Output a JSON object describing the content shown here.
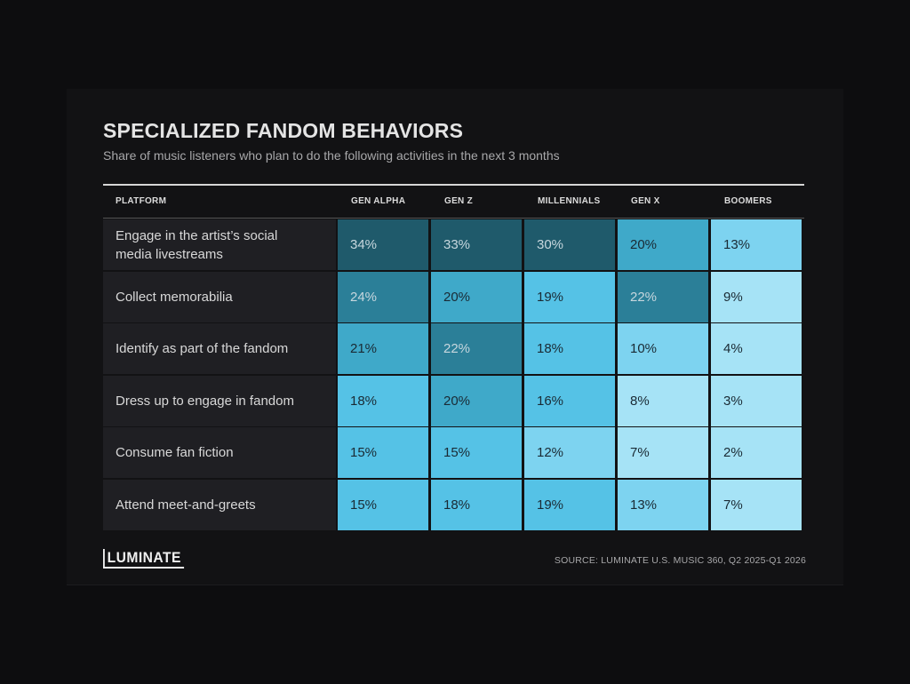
{
  "chart_data": {
    "type": "heatmap",
    "title": "SPECIALIZED FANDOM BEHAVIORS",
    "subtitle": "Share of music listeners who plan to do the following activities in the next 3 months",
    "row_header": "PLATFORM",
    "columns": [
      "GEN ALPHA",
      "GEN Z",
      "MILLENNIALS",
      "GEN X",
      "BOOMERS"
    ],
    "rows": [
      {
        "label": "Engage in the artist’s social media livestreams",
        "values": [
          34,
          33,
          30,
          20,
          13
        ],
        "display": [
          "34%",
          "33%",
          "30%",
          "20%",
          "13%"
        ]
      },
      {
        "label": "Collect memorabilia",
        "values": [
          24,
          20,
          19,
          22,
          9
        ],
        "display": [
          "24%",
          "20%",
          "19%",
          "22%",
          "9%"
        ]
      },
      {
        "label": "Identify as part of the fandom",
        "values": [
          21,
          22,
          18,
          10,
          4
        ],
        "display": [
          "21%",
          "22%",
          "18%",
          "10%",
          "4%"
        ]
      },
      {
        "label": "Dress up to engage in fandom",
        "values": [
          18,
          20,
          16,
          8,
          3
        ],
        "display": [
          "18%",
          "20%",
          "16%",
          "8%",
          "3%"
        ]
      },
      {
        "label": "Consume fan fiction",
        "values": [
          15,
          15,
          12,
          7,
          2
        ],
        "display": [
          "15%",
          "15%",
          "12%",
          "7%",
          "2%"
        ]
      },
      {
        "label": "Attend meet-and-greets",
        "values": [
          15,
          18,
          19,
          13,
          7
        ],
        "display": [
          "15%",
          "18%",
          "19%",
          "13%",
          "7%"
        ]
      }
    ]
  },
  "footer": {
    "logo_text": "LUMINATE",
    "source": "SOURCE: LUMINATE U.S. MUSIC 360, Q2 2025-Q1 2026"
  },
  "colors": {
    "background": "#0d0d0f",
    "row_label_bg": "#1f1f23",
    "cell_scale": [
      "#a6e3f6",
      "#7dd3f0",
      "#55c2e6",
      "#3fa9c9",
      "#2b7f98",
      "#1f5a6b"
    ]
  }
}
